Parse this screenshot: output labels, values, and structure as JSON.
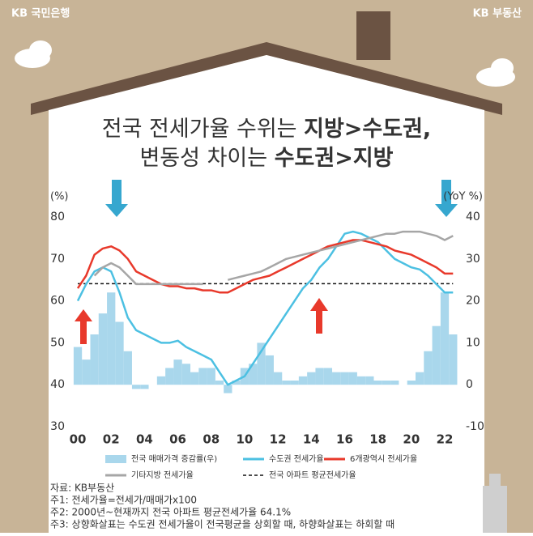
{
  "header": {
    "left": "KB 국민은행",
    "right": "KB 부동산"
  },
  "chart_data": {
    "type": "line",
    "title_lines": [
      [
        {
          "text": "전국 전세가율 수위는 ",
          "bold": false
        },
        {
          "text": "지방>수도권,",
          "bold": true
        }
      ],
      [
        {
          "text": "변동성 차이는 ",
          "bold": false
        },
        {
          "text": "수도권>지방",
          "bold": true
        }
      ]
    ],
    "y_label": "(%)",
    "y2_label": "(YoY %)",
    "xlim": [
      1999.6,
      2023
    ],
    "xticks": [
      {
        "value": 2000,
        "label": "00"
      },
      {
        "value": 2002,
        "label": "02"
      },
      {
        "value": 2004,
        "label": "04"
      },
      {
        "value": 2006,
        "label": "06"
      },
      {
        "value": 2008,
        "label": "08"
      },
      {
        "value": 2010,
        "label": "10"
      },
      {
        "value": 2012,
        "label": "12"
      },
      {
        "value": 2014,
        "label": "14"
      },
      {
        "value": 2016,
        "label": "16"
      },
      {
        "value": 2018,
        "label": "18"
      },
      {
        "value": 2020,
        "label": "20"
      },
      {
        "value": 2022,
        "label": "22"
      }
    ],
    "ylim": [
      30,
      80
    ],
    "yticks": [
      30,
      40,
      50,
      60,
      70,
      80
    ],
    "y2lim": [
      -10,
      40
    ],
    "y2ticks": [
      -10,
      0,
      10,
      20,
      30,
      40
    ],
    "x": [
      2000,
      2000.5,
      2001,
      2001.5,
      2002,
      2002.5,
      2003,
      2003.5,
      2004,
      2004.5,
      2005,
      2005.5,
      2006,
      2006.5,
      2007,
      2007.5,
      2008,
      2008.5,
      2009,
      2009.5,
      2010,
      2010.5,
      2011,
      2011.5,
      2012,
      2012.5,
      2013,
      2013.5,
      2014,
      2014.5,
      2015,
      2015.5,
      2016,
      2016.5,
      2017,
      2017.5,
      2018,
      2018.5,
      2019,
      2019.5,
      2020,
      2020.5,
      2021,
      2021.5,
      2022,
      2022.5
    ],
    "series": [
      {
        "name": "전국 매매가격 증감률(우)",
        "type": "bar",
        "axis": "y2",
        "color": "#a9d7ec",
        "values": [
          9,
          6,
          12,
          17,
          22,
          15,
          8,
          -1,
          -1,
          0,
          2,
          4,
          6,
          5,
          3,
          4,
          4,
          1,
          -2,
          1,
          4,
          5,
          10,
          7,
          3,
          1,
          1,
          2,
          3,
          4,
          4,
          3,
          3,
          3,
          2,
          2,
          1,
          1,
          1,
          0,
          1,
          3,
          8,
          14,
          22,
          12
        ]
      },
      {
        "name": "수도권 전세가율",
        "type": "line",
        "color": "#4cc0e2",
        "values": [
          60,
          64,
          67,
          68,
          67,
          62,
          56,
          53,
          52,
          51,
          50,
          50,
          50.5,
          49,
          48,
          47,
          46,
          43,
          40,
          41,
          42,
          45,
          48,
          51,
          54,
          57,
          60,
          63,
          65,
          68,
          70,
          73,
          76,
          76.5,
          76,
          75,
          74,
          72,
          70,
          69,
          68,
          67.5,
          66,
          64,
          62,
          62
        ]
      },
      {
        "name": "6개광역시 전세가율",
        "type": "line",
        "color": "#e8392b",
        "values": [
          63,
          66,
          71,
          72.5,
          73,
          72,
          70,
          67,
          66,
          65,
          64,
          63.5,
          63.5,
          63,
          63,
          62.5,
          62.5,
          62,
          62,
          63,
          64,
          65,
          65.5,
          66,
          67,
          68,
          69,
          70,
          71,
          72,
          73,
          73.5,
          74,
          74.5,
          74.5,
          74,
          73.5,
          73,
          72,
          71.5,
          71,
          70,
          69,
          68,
          66.5,
          66.5
        ]
      },
      {
        "name": "기타지방 전세가율",
        "type": "line",
        "color": "#a6a6a6",
        "values": [
          null,
          null,
          66,
          68,
          69,
          68,
          66,
          64,
          64,
          64,
          64,
          64,
          64,
          64,
          64,
          64,
          null,
          null,
          65,
          65.5,
          66,
          66.5,
          67,
          68,
          69,
          70,
          70.5,
          71,
          71.5,
          72,
          72.5,
          73,
          73.5,
          74,
          74.5,
          75,
          75.5,
          76,
          76,
          76.5,
          76.5,
          76.5,
          76,
          75.5,
          74.5,
          75.5
        ]
      }
    ],
    "reference_line": {
      "name": "전국 아파트 평균전세가율",
      "value": 64.1,
      "color": "#111111"
    },
    "notes": [
      "자료: KB부동산",
      "주1: 전세가율=전세가/매매가x100",
      "주2: 2000년~현재까지 전국 아파트 평균전세가율 64.1%",
      "주3: 상향화살표는 수도권 전세가율이 전국평균을 상회할 때, 하향화살표는 하회할 때"
    ]
  }
}
